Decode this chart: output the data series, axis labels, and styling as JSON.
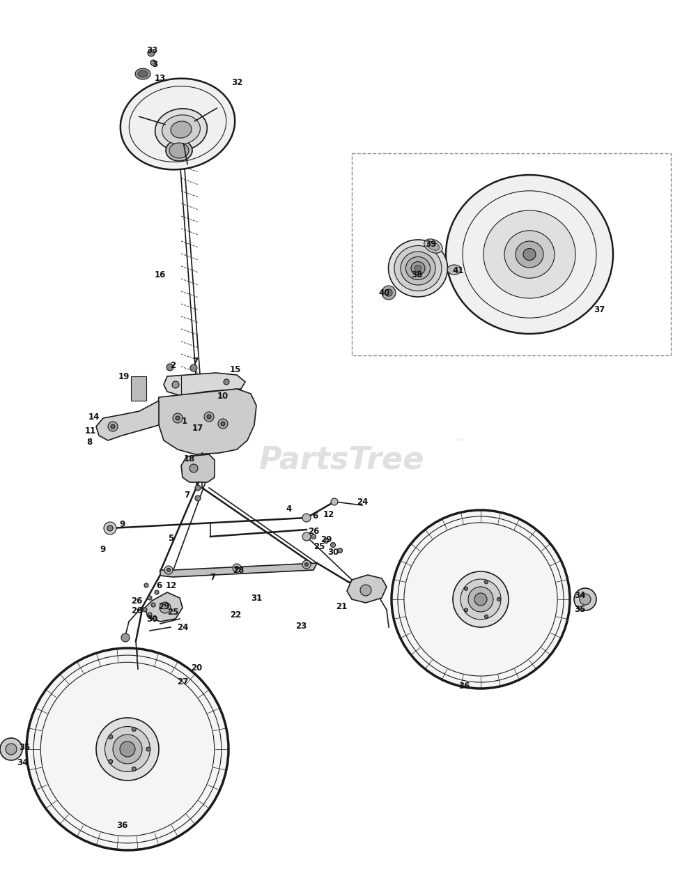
{
  "bg_color": "#ffffff",
  "line_color": "#1a1a1a",
  "label_color": "#111111",
  "watermark_color": "#c8c8c8",
  "watermark_text": "PartsTree",
  "watermark_tm": "™",
  "figsize": [
    9.89,
    12.8
  ],
  "dpi": 100,
  "font_size_labels": 8.5,
  "font_size_watermark": 32,
  "coord_system": "pixels_989x1280"
}
